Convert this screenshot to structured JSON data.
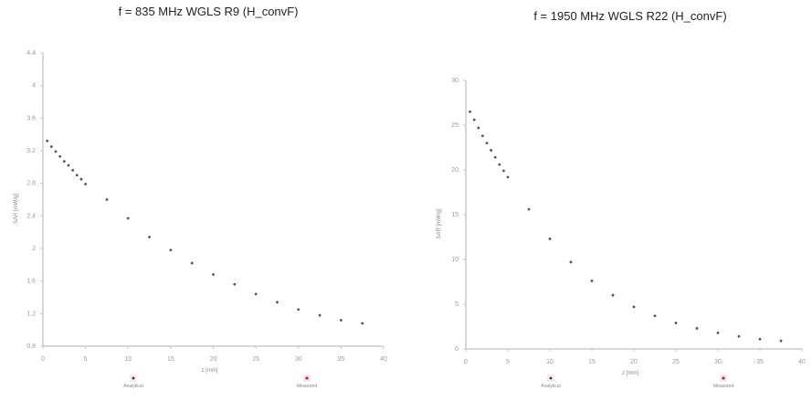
{
  "chart_data": [
    {
      "type": "scatter",
      "title": "f = 835 MHz WGLS R9 (H_convF)",
      "xlabel": "z [mm]",
      "ylabel": "SAR [mW/g]",
      "xlim": [
        0,
        40
      ],
      "ylim": [
        0.8,
        4.4
      ],
      "xticks": [
        0,
        5,
        10,
        15,
        20,
        25,
        30,
        35,
        40
      ],
      "yticks": [
        0.8,
        1.2,
        1.6,
        2.0,
        2.4,
        2.8,
        3.2,
        3.6,
        4.0,
        4.4
      ],
      "legend": [
        "Analytical",
        "Measured"
      ],
      "series": [
        {
          "name": "Measured",
          "x": [
            0.5,
            1,
            1.5,
            2,
            2.5,
            3,
            3.5,
            4,
            4.5,
            5,
            7.5,
            10,
            12.5,
            15,
            17.5,
            20,
            22.5,
            25,
            27.5,
            30,
            32.5,
            35,
            37.5
          ],
          "y": [
            3.32,
            3.25,
            3.19,
            3.13,
            3.07,
            3.02,
            2.96,
            2.9,
            2.85,
            2.79,
            2.6,
            2.37,
            2.14,
            1.98,
            1.82,
            1.68,
            1.56,
            1.44,
            1.34,
            1.25,
            1.18,
            1.12,
            1.08
          ]
        }
      ]
    },
    {
      "type": "scatter",
      "title": "f = 1950 MHz WGLS R22 (H_convF)",
      "xlabel": "z [mm]",
      "ylabel": "SAR [mW/g]",
      "xlim": [
        0,
        40
      ],
      "ylim": [
        0,
        30
      ],
      "xticks": [
        0,
        5,
        10,
        15,
        20,
        25,
        30,
        35,
        40
      ],
      "yticks": [
        0,
        5,
        10,
        15,
        20,
        25,
        30
      ],
      "legend": [
        "Analytical",
        "Measured"
      ],
      "series": [
        {
          "name": "Measured",
          "x": [
            0.5,
            1,
            1.5,
            2,
            2.5,
            3,
            3.5,
            4,
            4.5,
            5,
            7.5,
            10,
            12.5,
            15,
            17.5,
            20,
            22.5,
            25,
            27.5,
            30,
            32.5,
            35,
            37.5
          ],
          "y": [
            26.5,
            25.6,
            24.7,
            23.8,
            23.0,
            22.2,
            21.4,
            20.6,
            19.9,
            19.2,
            15.6,
            12.3,
            9.7,
            7.6,
            6.0,
            4.7,
            3.7,
            2.9,
            2.3,
            1.8,
            1.4,
            1.1,
            0.9
          ]
        }
      ]
    }
  ]
}
